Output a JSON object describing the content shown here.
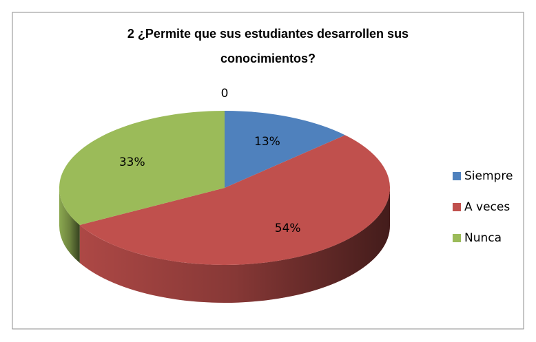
{
  "chart_data": {
    "type": "pie3d",
    "title": [
      "2 ¿Permite que  sus estudiantes  desarrollen  sus",
      "conocimientos?"
    ],
    "series_name": "0",
    "categories": [
      "Siempre",
      "A veces",
      "Nunca"
    ],
    "values": [
      13,
      54,
      33
    ],
    "value_labels": [
      "13%",
      "54%",
      "33%"
    ],
    "colors": [
      "#4f81bd",
      "#c0504d",
      "#9bbb59"
    ],
    "legend": "right"
  }
}
